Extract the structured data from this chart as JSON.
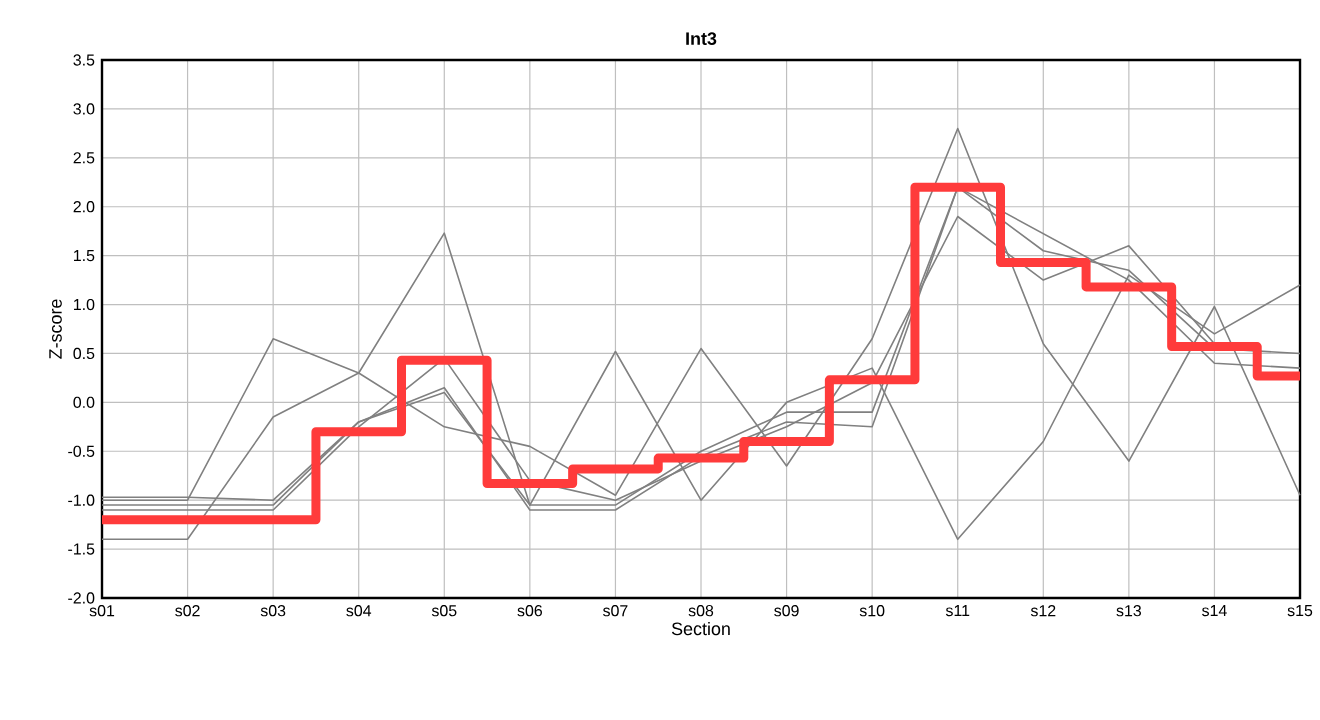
{
  "chart_data": {
    "type": "line",
    "title": "Int3",
    "xlabel": "Section",
    "ylabel": "Z-score",
    "categories": [
      "s01",
      "s02",
      "s03",
      "s04",
      "s05",
      "s06",
      "s07",
      "s08",
      "s09",
      "s10",
      "s11",
      "s12",
      "s13",
      "s14",
      "s15"
    ],
    "ylim": [
      -2.0,
      3.5
    ],
    "yticks": [
      {
        "value": -2.0,
        "label": "-2.0"
      },
      -1.5,
      {
        "value": -1.0,
        "label": "-1.0"
      },
      -0.5,
      {
        "value": 0.0,
        "label": "0.0"
      },
      0.5,
      {
        "value": 1.0,
        "label": "1.0"
      },
      1.5,
      {
        "value": 2.0,
        "label": "2.0"
      },
      2.5,
      {
        "value": 3.0,
        "label": "3.0"
      },
      3.5
    ],
    "grid": true,
    "marker": "none",
    "line_style": "solid",
    "series": [
      {
        "color": "#808080",
        "values": [
          -1.0,
          -1.0,
          0.65,
          0.3,
          -0.25,
          -0.45,
          -0.95,
          0.55,
          -0.65,
          0.65,
          2.8,
          0.6,
          -0.6,
          0.98,
          -0.95
        ]
      },
      {
        "color": "#808080",
        "values": [
          -1.4,
          -1.4,
          -0.15,
          0.3,
          1.73,
          -1.05,
          0.52,
          -1.0,
          0.0,
          0.35,
          -1.4,
          -0.4,
          1.3,
          0.7,
          1.2
        ]
      },
      {
        "color": "#808080",
        "values": [
          -0.97,
          -0.97,
          -1.0,
          -0.2,
          0.1,
          -1.05,
          -1.05,
          -0.5,
          -0.1,
          -0.1,
          2.2,
          1.55,
          1.35,
          0.55,
          0.5
        ]
      },
      {
        "color": "#808080",
        "values": [
          -1.05,
          -1.05,
          -1.05,
          -0.2,
          0.15,
          -1.1,
          -1.1,
          -0.55,
          -0.2,
          -0.25,
          2.2,
          null,
          1.25,
          0.4,
          0.35
        ]
      },
      {
        "color": "#808080",
        "values": [
          -1.1,
          -1.1,
          -1.1,
          -0.25,
          0.45,
          -0.8,
          -1.0,
          -0.6,
          -0.25,
          0.2,
          1.9,
          1.25,
          1.6,
          0.6,
          null
        ]
      },
      {
        "type": "step",
        "color": "#ff3b3b",
        "values": [
          -1.2,
          -1.2,
          -1.2,
          -0.3,
          0.43,
          -0.83,
          -0.68,
          -0.57,
          -0.4,
          0.23,
          2.2,
          1.43,
          1.18,
          0.57,
          0.27
        ]
      }
    ]
  }
}
